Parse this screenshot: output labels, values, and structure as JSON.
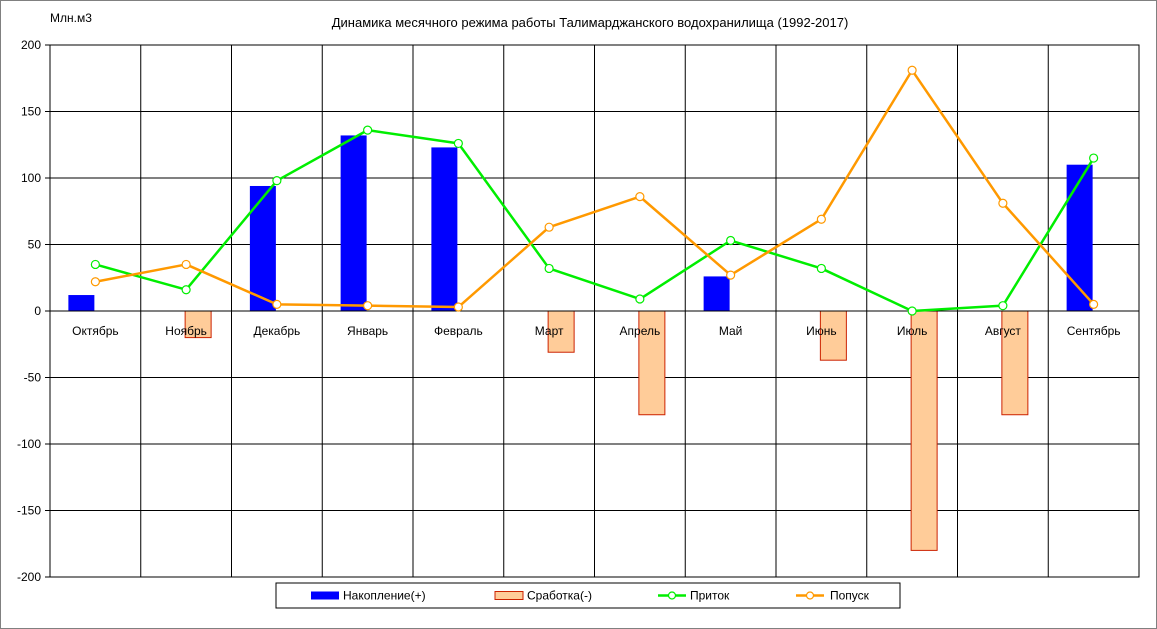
{
  "chart_data": {
    "type": "bar",
    "title": "Динамика месячного режима работы Талимарджанского водохранилища (1992-2017)",
    "ylabel": "Млн.м3",
    "xlabel": "",
    "ylim": [
      -200,
      200
    ],
    "yticks": [
      200,
      150,
      100,
      50,
      0,
      -50,
      -100,
      -150,
      -200
    ],
    "grid": true,
    "legend_position": "bottom",
    "categories": [
      "Октябрь",
      "Ноябрь",
      "Декабрь",
      "Январь",
      "Февраль",
      "Март",
      "Апрель",
      "Май",
      "Июнь",
      "Июль",
      "Август",
      "Сентябрь"
    ],
    "series": [
      {
        "name": "Накопление(+)",
        "type": "bar",
        "color": "#0000ff",
        "values": [
          12,
          0,
          94,
          132,
          123,
          0,
          0,
          26,
          0,
          0,
          0,
          110
        ]
      },
      {
        "name": "Сработка(-)",
        "type": "bar",
        "color": "#ffcc99",
        "stroke": "#cc2200",
        "values": [
          0,
          -20,
          0,
          0,
          0,
          -31,
          -78,
          0,
          -37,
          -180,
          -78,
          0
        ]
      },
      {
        "name": "Приток",
        "type": "line",
        "color": "#00ee00",
        "values": [
          35,
          16,
          98,
          136,
          126,
          32,
          9,
          53,
          32,
          0,
          4,
          115
        ]
      },
      {
        "name": "Попуск",
        "type": "line",
        "color": "#ff9900",
        "values": [
          22,
          35,
          5,
          4,
          3,
          63,
          86,
          27,
          69,
          181,
          81,
          5
        ]
      }
    ]
  }
}
